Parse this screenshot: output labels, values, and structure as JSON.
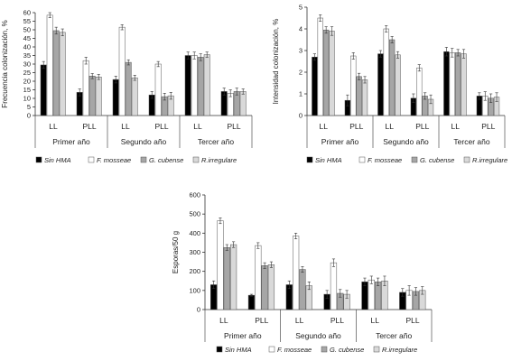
{
  "chart_data": [
    {
      "type": "bar",
      "ylabel": "Frecuencia colonización, %",
      "ylim": [
        0,
        60
      ],
      "yticks": [
        0,
        5,
        10,
        15,
        20,
        25,
        30,
        35,
        40,
        45,
        50,
        55,
        60
      ],
      "categories": [
        "LL",
        "PLL",
        "LL",
        "PLL",
        "LL",
        "PLL"
      ],
      "groups": [
        "Primer año",
        "Segundo año",
        "Tercer año"
      ],
      "series": [
        {
          "name": "Sin HMA",
          "color": "#000000",
          "values": [
            29.5,
            13.5,
            21,
            12,
            35,
            14
          ],
          "errors": [
            2,
            2,
            2,
            2,
            2,
            2
          ]
        },
        {
          "name": "F. mosseae",
          "color": "#ffffff",
          "values": [
            58.5,
            32,
            51.5,
            30,
            35,
            13
          ],
          "errors": [
            1.5,
            2,
            1.5,
            1.5,
            2,
            2
          ]
        },
        {
          "name": "G. cubense",
          "color": "#a6a6a6",
          "values": [
            49.5,
            23,
            31,
            11,
            34,
            14
          ],
          "errors": [
            2,
            1.5,
            1.5,
            2,
            2,
            2
          ]
        },
        {
          "name": "R.irregulare",
          "color": "#d9d9d9",
          "values": [
            48.5,
            22.5,
            22,
            11.5,
            35.5,
            14
          ],
          "errors": [
            2,
            1.5,
            1.5,
            2,
            1.5,
            1.5
          ]
        }
      ]
    },
    {
      "type": "bar",
      "ylabel": "Intensidad colonización, %",
      "ylim": [
        0,
        5
      ],
      "yticks": [
        0,
        1,
        2,
        3,
        4,
        5
      ],
      "categories": [
        "LL",
        "PLL",
        "LL",
        "PLL",
        "LL",
        "PLL"
      ],
      "groups": [
        "Primer año",
        "Segundo año",
        "Tercer año"
      ],
      "series": [
        {
          "name": "Sin HMA",
          "color": "#000000",
          "values": [
            2.7,
            0.7,
            2.85,
            0.8,
            2.95,
            0.9
          ],
          "errors": [
            0.15,
            0.25,
            0.15,
            0.2,
            0.2,
            0.15
          ]
        },
        {
          "name": "F. mosseae",
          "color": "#ffffff",
          "values": [
            4.5,
            2.75,
            4.0,
            2.2,
            2.9,
            0.9
          ],
          "errors": [
            0.15,
            0.15,
            0.15,
            0.15,
            0.2,
            0.2
          ]
        },
        {
          "name": "G. cubense",
          "color": "#a6a6a6",
          "values": [
            3.95,
            1.8,
            3.5,
            0.9,
            2.9,
            0.8
          ],
          "errors": [
            0.15,
            0.15,
            0.15,
            0.15,
            0.15,
            0.2
          ]
        },
        {
          "name": "R.irregulare",
          "color": "#d9d9d9",
          "values": [
            3.9,
            1.65,
            2.8,
            0.75,
            2.85,
            0.85
          ],
          "errors": [
            0.2,
            0.15,
            0.15,
            0.2,
            0.2,
            0.2
          ]
        }
      ]
    },
    {
      "type": "bar",
      "ylabel": "Esporas/50 g",
      "ylim": [
        0,
        600
      ],
      "yticks": [
        0,
        100,
        200,
        300,
        400,
        500,
        600
      ],
      "categories": [
        "LL",
        "PLL",
        "LL",
        "PLL",
        "LL",
        "PLL"
      ],
      "groups": [
        "Primer año",
        "Segundo año",
        "Tercer año"
      ],
      "series": [
        {
          "name": "Sin HMA",
          "color": "#000000",
          "values": [
            130,
            75,
            130,
            80,
            145,
            90
          ],
          "errors": [
            20,
            5,
            20,
            20,
            20,
            20
          ]
        },
        {
          "name": "F. mosseae",
          "color": "#ffffff",
          "values": [
            465,
            335,
            385,
            245,
            155,
            100
          ],
          "errors": [
            15,
            15,
            15,
            20,
            20,
            25
          ]
        },
        {
          "name": "G. cubense",
          "color": "#a6a6a6",
          "values": [
            325,
            230,
            210,
            85,
            145,
            95
          ],
          "errors": [
            15,
            15,
            15,
            20,
            20,
            20
          ]
        },
        {
          "name": "R.irregulare",
          "color": "#d9d9d9",
          "values": [
            340,
            235,
            125,
            80,
            150,
            100
          ],
          "errors": [
            15,
            15,
            20,
            20,
            25,
            20
          ]
        }
      ]
    }
  ]
}
